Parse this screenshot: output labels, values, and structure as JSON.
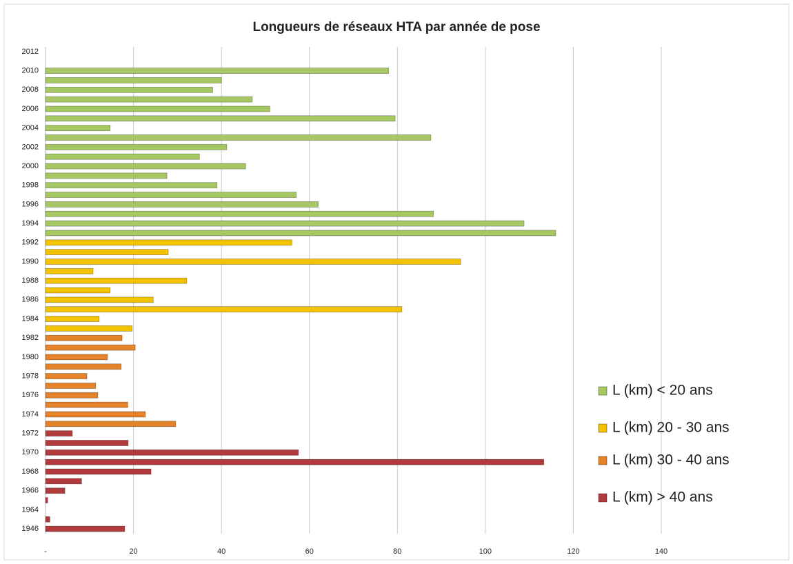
{
  "chart_data": {
    "type": "bar",
    "orientation": "horizontal",
    "title": "Longueurs de réseaux HTA par année de pose",
    "categories": [
      "2012",
      null,
      "2010",
      null,
      "2008",
      null,
      "2006",
      null,
      "2004",
      null,
      "2002",
      null,
      "2000",
      null,
      "1998",
      null,
      "1996",
      null,
      "1994",
      null,
      "1992",
      null,
      "1990",
      null,
      "1988",
      null,
      "1986",
      null,
      "1984",
      null,
      "1982",
      null,
      "1980",
      null,
      "1978",
      null,
      "1976",
      null,
      "1974",
      null,
      "1972",
      null,
      "1970",
      null,
      "1968",
      null,
      "1966",
      null,
      "1964",
      null,
      "1946"
    ],
    "series": [
      {
        "name": "L (km) < 20 ans",
        "color": "#a5c863",
        "values": [
          null,
          null,
          78,
          40,
          38,
          47,
          51,
          79.5,
          14.7,
          87.6,
          41.2,
          35,
          45.5,
          27.6,
          39,
          57,
          62,
          88.2,
          108.8,
          116,
          null,
          null,
          null,
          null,
          null,
          null,
          null,
          null,
          null,
          null,
          null,
          null,
          null,
          null,
          null,
          null,
          null,
          null,
          null,
          null,
          null,
          null,
          null,
          null,
          null,
          null,
          null,
          null,
          null,
          null,
          null
        ]
      },
      {
        "name": "L (km) 20 - 30 ans",
        "color": "#f3c300",
        "values": [
          null,
          null,
          null,
          null,
          null,
          null,
          null,
          null,
          null,
          null,
          null,
          null,
          null,
          null,
          null,
          null,
          null,
          null,
          null,
          null,
          56,
          27.9,
          94.4,
          10.8,
          32.1,
          14.7,
          24.5,
          81,
          12.2,
          19.7,
          null,
          null,
          null,
          null,
          null,
          null,
          null,
          null,
          null,
          null,
          null,
          null,
          null,
          null,
          null,
          null,
          null,
          null,
          null,
          null,
          null
        ]
      },
      {
        "name": "L (km) 30 - 40 ans",
        "color": "#e4832a",
        "values": [
          null,
          null,
          null,
          null,
          null,
          null,
          null,
          null,
          null,
          null,
          null,
          null,
          null,
          null,
          null,
          null,
          null,
          null,
          null,
          null,
          null,
          null,
          null,
          null,
          null,
          null,
          null,
          null,
          null,
          null,
          17.4,
          20.4,
          14.1,
          17.2,
          9.4,
          11.4,
          11.9,
          18.7,
          22.7,
          29.6,
          null,
          null,
          null,
          null,
          null,
          null,
          null,
          null,
          null,
          null,
          null
        ]
      },
      {
        "name": "L (km) >  40 ans",
        "color": "#b03a3c",
        "values": [
          null,
          null,
          null,
          null,
          null,
          null,
          null,
          null,
          null,
          null,
          null,
          null,
          null,
          null,
          null,
          null,
          null,
          null,
          null,
          null,
          null,
          null,
          null,
          null,
          null,
          null,
          null,
          null,
          null,
          null,
          null,
          null,
          null,
          null,
          null,
          null,
          null,
          null,
          null,
          null,
          6.1,
          18.8,
          57.5,
          113.3,
          24,
          8.2,
          4.4,
          0.5,
          null,
          1,
          18
        ]
      }
    ],
    "xlim": [
      0,
      140
    ],
    "xticks": [
      {
        "value": 0,
        "label": "-"
      },
      20,
      40,
      60,
      80,
      100,
      120,
      140
    ],
    "grid": true,
    "legend": "right"
  }
}
